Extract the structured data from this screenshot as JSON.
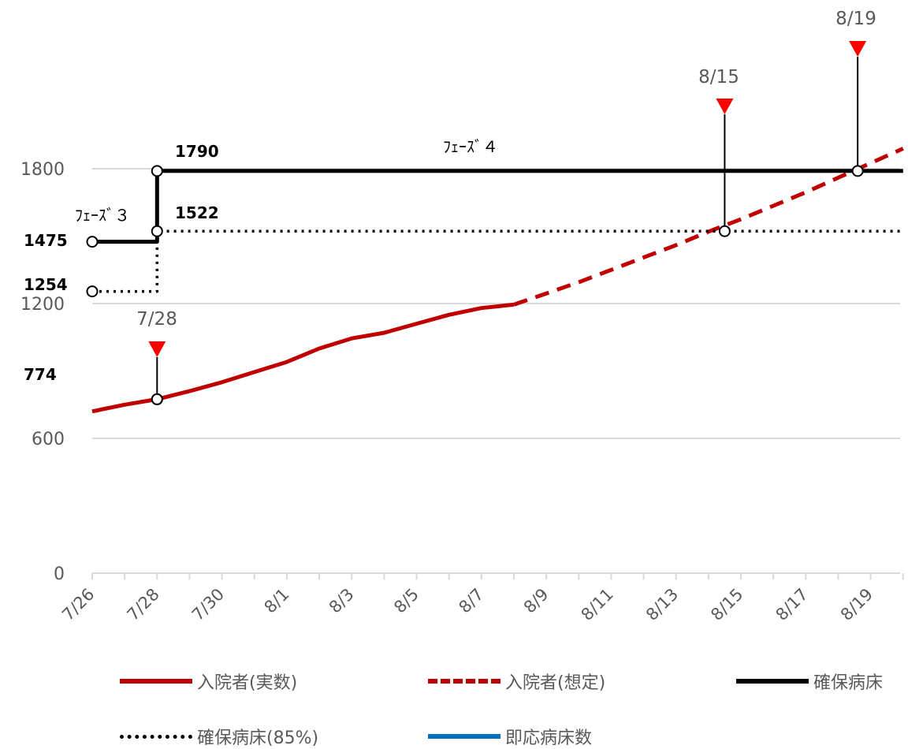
{
  "chart_data": {
    "type": "line",
    "title": "",
    "xlabel": "",
    "ylabel": "",
    "ylim": [
      0,
      2000
    ],
    "yticks": [
      0,
      600,
      1200,
      1800
    ],
    "grid": "horizontal",
    "legend_position": "bottom",
    "x_dates": [
      "7/26",
      "7/27",
      "7/28",
      "7/29",
      "7/30",
      "7/31",
      "8/1",
      "8/2",
      "8/3",
      "8/4",
      "8/5",
      "8/6",
      "8/7",
      "8/8",
      "8/9",
      "8/10",
      "8/11",
      "8/12",
      "8/13",
      "8/14",
      "8/15",
      "8/16",
      "8/17",
      "8/18",
      "8/19",
      "8/20"
    ],
    "x_tick_labels": [
      "7/26",
      "7/28",
      "7/30",
      "8/1",
      "8/3",
      "8/5",
      "8/7",
      "8/9",
      "8/11",
      "8/13",
      "8/15",
      "8/17",
      "8/19"
    ],
    "series": [
      {
        "name": "入院者(実数)",
        "color": "#c00000",
        "style": "solid",
        "x": [
          "7/26",
          "7/27",
          "7/28",
          "7/29",
          "7/30",
          "7/31",
          "8/1",
          "8/2",
          "8/3",
          "8/4",
          "8/5",
          "8/6",
          "8/7",
          "8/8"
        ],
        "values": [
          720,
          750,
          774,
          810,
          850,
          895,
          940,
          1000,
          1045,
          1070,
          1110,
          1150,
          1180,
          1195
        ]
      },
      {
        "name": "入院者(想定)",
        "color": "#c00000",
        "style": "dashed",
        "x": [
          "8/8",
          "8/9",
          "8/10",
          "8/11",
          "8/12",
          "8/13",
          "8/14",
          "8/15",
          "8/16",
          "8/17",
          "8/18",
          "8/19",
          "8/20"
        ],
        "values": [
          1195,
          1245,
          1295,
          1350,
          1405,
          1460,
          1520,
          1575,
          1635,
          1695,
          1760,
          1825,
          1890
        ]
      },
      {
        "name": "確保病床",
        "color": "#000000",
        "style": "solid",
        "x": [
          "7/26",
          "7/28",
          "7/28",
          "8/20"
        ],
        "values": [
          1475,
          1475,
          1790,
          1790
        ]
      },
      {
        "name": "確保病床(85%)",
        "color": "#000000",
        "style": "dotted",
        "x": [
          "7/26",
          "7/28",
          "7/28",
          "8/20"
        ],
        "values": [
          1254,
          1254,
          1522,
          1522
        ]
      },
      {
        "name": "即応病床数",
        "color": "#0070c0",
        "style": "solid",
        "x": [],
        "values": []
      }
    ],
    "annotations": {
      "values": [
        {
          "label": "1790",
          "x": "7/28",
          "y": 1790
        },
        {
          "label": "1522",
          "x": "7/28",
          "y": 1522
        },
        {
          "label": "1475",
          "x": "7/26",
          "y": 1475
        },
        {
          "label": "1254",
          "x": "7/26",
          "y": 1254
        },
        {
          "label": "774",
          "x": "7/28",
          "y": 774
        }
      ],
      "phases": [
        {
          "label": "ﾌｪｰｽﾞ３"
        },
        {
          "label": "ﾌｪｰｽﾞ４"
        }
      ],
      "dates": [
        {
          "label": "7/28",
          "x": 2.0,
          "y": 774
        },
        {
          "label": "8/15",
          "x": 19.5,
          "y": 1522
        },
        {
          "label": "8/19",
          "x": 23.6,
          "y": 1790
        }
      ]
    }
  }
}
